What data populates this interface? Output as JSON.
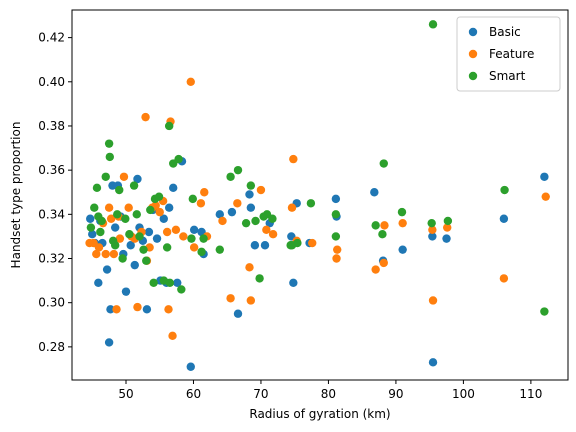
{
  "chart_data": {
    "type": "scatter",
    "xlabel": "Radius of gyration (km)",
    "ylabel": "Handset type proportion",
    "xlim": [
      42.0,
      115.5
    ],
    "ylim": [
      0.265,
      0.4325
    ],
    "xticks": [
      50,
      60,
      70,
      80,
      90,
      100,
      110
    ],
    "yticks": [
      0.28,
      0.3,
      0.32,
      0.34,
      0.36,
      0.38,
      0.4,
      0.42
    ],
    "grid": false,
    "legend_position": "top-right",
    "series": [
      {
        "name": "Basic",
        "color": "#1f77b4",
        "points": [
          [
            44.7,
            0.338
          ],
          [
            45.0,
            0.331
          ],
          [
            45.4,
            0.327
          ],
          [
            45.9,
            0.309
          ],
          [
            46.2,
            0.337
          ],
          [
            46.5,
            0.327
          ],
          [
            47.2,
            0.315
          ],
          [
            47.5,
            0.282
          ],
          [
            47.7,
            0.297
          ],
          [
            48.0,
            0.353
          ],
          [
            48.4,
            0.334
          ],
          [
            48.8,
            0.353
          ],
          [
            49.2,
            0.339
          ],
          [
            49.6,
            0.322
          ],
          [
            50.0,
            0.305
          ],
          [
            50.7,
            0.326
          ],
          [
            51.3,
            0.317
          ],
          [
            51.7,
            0.356
          ],
          [
            52.0,
            0.334
          ],
          [
            52.5,
            0.328
          ],
          [
            53.1,
            0.297
          ],
          [
            53.4,
            0.332
          ],
          [
            54.0,
            0.342
          ],
          [
            54.6,
            0.329
          ],
          [
            55.1,
            0.31
          ],
          [
            55.6,
            0.338
          ],
          [
            56.0,
            0.309
          ],
          [
            56.4,
            0.343
          ],
          [
            57.0,
            0.352
          ],
          [
            57.6,
            0.309
          ],
          [
            58.3,
            0.364
          ],
          [
            59.6,
            0.271
          ],
          [
            60.1,
            0.333
          ],
          [
            61.2,
            0.332
          ],
          [
            61.5,
            0.322
          ],
          [
            63.9,
            0.34
          ],
          [
            65.7,
            0.341
          ],
          [
            66.6,
            0.295
          ],
          [
            68.3,
            0.349
          ],
          [
            68.5,
            0.343
          ],
          [
            69.1,
            0.326
          ],
          [
            70.6,
            0.326
          ],
          [
            71.3,
            0.336
          ],
          [
            74.5,
            0.33
          ],
          [
            75.3,
            0.345
          ],
          [
            74.8,
            0.309
          ],
          [
            77.2,
            0.327
          ],
          [
            81.1,
            0.347
          ],
          [
            81.2,
            0.339
          ],
          [
            86.8,
            0.35
          ],
          [
            88.1,
            0.319
          ],
          [
            91.0,
            0.324
          ],
          [
            95.4,
            0.33
          ],
          [
            95.5,
            0.273
          ],
          [
            97.5,
            0.329
          ],
          [
            106.0,
            0.338
          ],
          [
            112.0,
            0.357
          ]
        ]
      },
      {
        "name": "Feature",
        "color": "#ff7f0e",
        "points": [
          [
            44.6,
            0.327
          ],
          [
            45.2,
            0.327
          ],
          [
            45.6,
            0.322
          ],
          [
            46.0,
            0.325
          ],
          [
            46.6,
            0.336
          ],
          [
            47.0,
            0.322
          ],
          [
            47.5,
            0.343
          ],
          [
            47.8,
            0.338
          ],
          [
            48.2,
            0.322
          ],
          [
            48.6,
            0.297
          ],
          [
            48.9,
            0.339
          ],
          [
            49.1,
            0.329
          ],
          [
            49.7,
            0.357
          ],
          [
            50.4,
            0.343
          ],
          [
            50.8,
            0.33
          ],
          [
            51.3,
            0.329
          ],
          [
            51.7,
            0.298
          ],
          [
            52.3,
            0.332
          ],
          [
            52.9,
            0.384
          ],
          [
            53.1,
            0.319
          ],
          [
            53.5,
            0.325
          ],
          [
            53.9,
            0.343
          ],
          [
            54.4,
            0.344
          ],
          [
            55.0,
            0.341
          ],
          [
            55.5,
            0.346
          ],
          [
            56.1,
            0.332
          ],
          [
            56.3,
            0.297
          ],
          [
            56.6,
            0.382
          ],
          [
            56.9,
            0.285
          ],
          [
            57.4,
            0.333
          ],
          [
            58.5,
            0.33
          ],
          [
            59.6,
            0.4
          ],
          [
            60.1,
            0.325
          ],
          [
            61.1,
            0.345
          ],
          [
            61.6,
            0.35
          ],
          [
            62.0,
            0.33
          ],
          [
            64.3,
            0.337
          ],
          [
            65.5,
            0.302
          ],
          [
            66.5,
            0.345
          ],
          [
            68.3,
            0.316
          ],
          [
            68.5,
            0.301
          ],
          [
            70.0,
            0.351
          ],
          [
            70.8,
            0.333
          ],
          [
            71.8,
            0.331
          ],
          [
            74.6,
            0.343
          ],
          [
            74.8,
            0.365
          ],
          [
            75.3,
            0.328
          ],
          [
            77.6,
            0.327
          ],
          [
            81.2,
            0.32
          ],
          [
            81.3,
            0.324
          ],
          [
            87.0,
            0.315
          ],
          [
            88.2,
            0.318
          ],
          [
            88.3,
            0.335
          ],
          [
            91.0,
            0.336
          ],
          [
            95.4,
            0.333
          ],
          [
            95.5,
            0.301
          ],
          [
            97.6,
            0.334
          ],
          [
            106.0,
            0.311
          ],
          [
            112.2,
            0.348
          ]
        ]
      },
      {
        "name": "Smart",
        "color": "#2ca02c",
        "points": [
          [
            44.8,
            0.334
          ],
          [
            45.3,
            0.343
          ],
          [
            45.7,
            0.352
          ],
          [
            45.9,
            0.339
          ],
          [
            46.2,
            0.332
          ],
          [
            46.4,
            0.337
          ],
          [
            47.0,
            0.357
          ],
          [
            47.5,
            0.372
          ],
          [
            47.6,
            0.366
          ],
          [
            48.1,
            0.328
          ],
          [
            48.4,
            0.326
          ],
          [
            48.7,
            0.34
          ],
          [
            49.0,
            0.351
          ],
          [
            49.5,
            0.32
          ],
          [
            49.9,
            0.338
          ],
          [
            50.5,
            0.331
          ],
          [
            51.2,
            0.353
          ],
          [
            51.6,
            0.34
          ],
          [
            52.0,
            0.33
          ],
          [
            52.6,
            0.324
          ],
          [
            53.0,
            0.319
          ],
          [
            53.6,
            0.342
          ],
          [
            54.1,
            0.309
          ],
          [
            54.3,
            0.347
          ],
          [
            54.9,
            0.348
          ],
          [
            55.6,
            0.31
          ],
          [
            56.1,
            0.325
          ],
          [
            56.4,
            0.38
          ],
          [
            56.5,
            0.309
          ],
          [
            57.0,
            0.363
          ],
          [
            57.8,
            0.365
          ],
          [
            58.2,
            0.306
          ],
          [
            59.7,
            0.329
          ],
          [
            59.9,
            0.347
          ],
          [
            61.2,
            0.323
          ],
          [
            61.5,
            0.329
          ],
          [
            63.9,
            0.324
          ],
          [
            65.5,
            0.357
          ],
          [
            66.6,
            0.36
          ],
          [
            67.8,
            0.336
          ],
          [
            68.5,
            0.353
          ],
          [
            69.2,
            0.337
          ],
          [
            69.8,
            0.311
          ],
          [
            70.4,
            0.339
          ],
          [
            70.9,
            0.34
          ],
          [
            71.7,
            0.338
          ],
          [
            74.4,
            0.326
          ],
          [
            74.6,
            0.326
          ],
          [
            75.4,
            0.327
          ],
          [
            77.4,
            0.345
          ],
          [
            81.1,
            0.33
          ],
          [
            81.1,
            0.34
          ],
          [
            87.0,
            0.335
          ],
          [
            88.2,
            0.363
          ],
          [
            88.0,
            0.331
          ],
          [
            90.9,
            0.341
          ],
          [
            95.3,
            0.336
          ],
          [
            95.5,
            0.426
          ],
          [
            97.7,
            0.337
          ],
          [
            106.1,
            0.351
          ],
          [
            112.0,
            0.296
          ]
        ]
      }
    ]
  }
}
